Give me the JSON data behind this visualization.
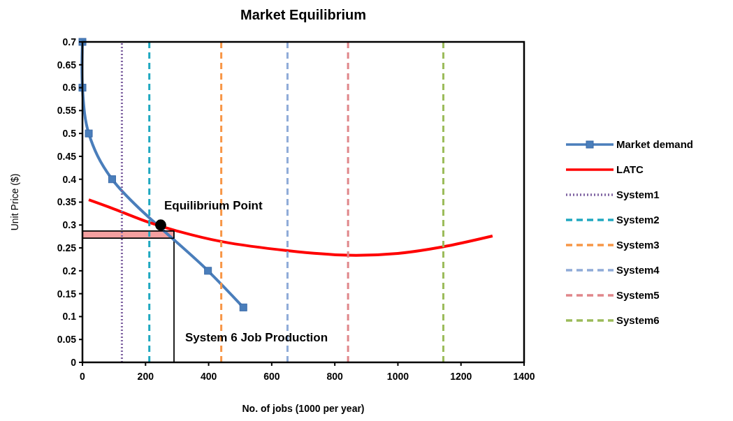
{
  "chart_data": {
    "type": "line",
    "title": "Market Equilibrium",
    "xlabel": "No. of jobs (1000 per year)",
    "ylabel": "Unit Price ($)",
    "xlim": [
      0,
      1400
    ],
    "xticks": [
      0,
      200,
      400,
      600,
      800,
      1000,
      1200,
      1400
    ],
    "ylim": [
      0,
      0.7
    ],
    "yticks": [
      0,
      0.05,
      0.1,
      0.15,
      0.2,
      0.25,
      0.3,
      0.35,
      0.4,
      0.45,
      0.5,
      0.55,
      0.6,
      0.65,
      0.7
    ],
    "grid": false,
    "legend": "right",
    "series": [
      {
        "name": "Market demand",
        "color": "#4a7ebb",
        "marker": "square",
        "x": [
          0,
          0,
          20,
          94,
          398,
          510
        ],
        "values": [
          0.7,
          0.6,
          0.5,
          0.4,
          0.2,
          0.12
        ]
      },
      {
        "name": "LATC",
        "color": "#ff0000",
        "marker": "none",
        "x": [
          20,
          100,
          210,
          300,
          440,
          650,
          840,
          1000,
          1140,
          1300
        ],
        "values": [
          0.355,
          0.335,
          0.306,
          0.287,
          0.264,
          0.244,
          0.234,
          0.238,
          0.252,
          0.276
        ]
      },
      {
        "name": "System1",
        "color": "#8064a2",
        "line_style": "dotted",
        "marker": "none",
        "x": [
          125,
          125
        ],
        "values": [
          0,
          0.7
        ]
      },
      {
        "name": "System2",
        "color": "#1fa8c0",
        "line_style": "dashed",
        "marker": "none",
        "x": [
          212,
          212
        ],
        "values": [
          0,
          0.7
        ]
      },
      {
        "name": "System3",
        "color": "#f79646",
        "line_style": "dashed",
        "marker": "none",
        "x": [
          440,
          440
        ],
        "values": [
          0,
          0.7
        ]
      },
      {
        "name": "System4",
        "color": "#8eabd8",
        "line_style": "dashed",
        "marker": "none",
        "x": [
          650,
          650
        ],
        "values": [
          0,
          0.7
        ]
      },
      {
        "name": "System5",
        "color": "#e0868a",
        "line_style": "dashed",
        "marker": "none",
        "x": [
          842,
          842
        ],
        "values": [
          0,
          0.7
        ]
      },
      {
        "name": "System6",
        "color": "#9bbb59",
        "line_style": "dashed",
        "marker": "none",
        "x": [
          1144,
          1144
        ],
        "values": [
          0,
          0.7
        ]
      },
      {
        "type": "area",
        "color": "#f4a0a0",
        "marker": "none",
        "x": [
          0,
          290
        ],
        "values": [
          0.287,
          0.287
        ]
      },
      {
        "type": "area",
        "color": "#ffffff",
        "marker": "none",
        "x": [
          0,
          290
        ],
        "values": [
          0.271,
          0.271
        ]
      },
      {
        "color": "#000000",
        "marker": "none",
        "line_style": "solid",
        "x": [
          0,
          290,
          290,
          0
        ],
        "values": [
          0.287,
          0.287,
          0.271,
          0.271
        ]
      },
      {
        "type": "scatter",
        "color": "#000000",
        "marker": "circle",
        "x": [
          248
        ],
        "values": [
          0.3
        ]
      }
    ],
    "annotations": [
      {
        "text": "Equilibrium Point",
        "x": 248,
        "y": 0.3
      },
      "System 6 Job Production"
    ]
  }
}
